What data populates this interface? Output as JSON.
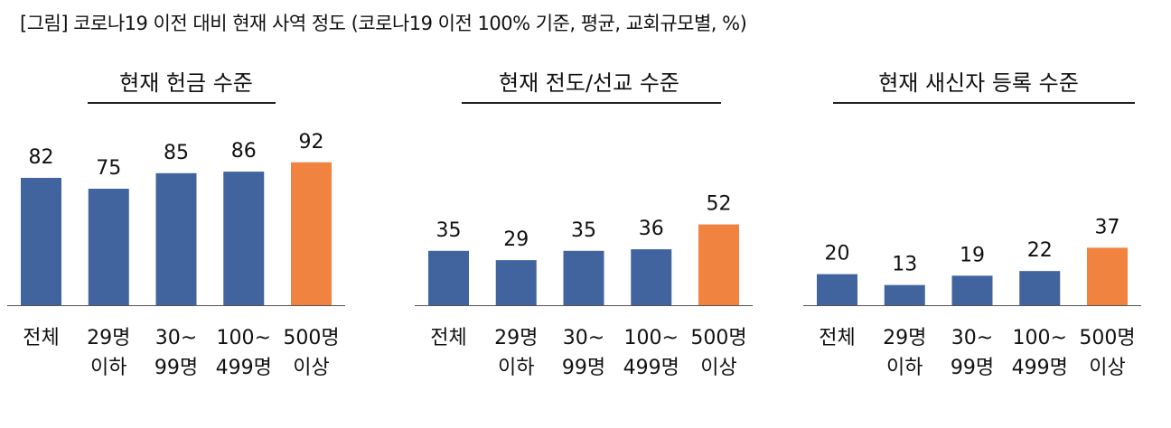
{
  "title": "[그림] 코로나19 이전 대비 현재 사역 정도 (코로나19 이전 100% 기준, 평균, 교회규모별, %)",
  "colors": {
    "base": "#41649F",
    "highlight": "#F0833F",
    "axis": "#555555"
  },
  "chart_data": [
    {
      "type": "bar",
      "title": "현재 헌금 수준",
      "categories": [
        "전체",
        "29명 이하",
        "30~ 99명",
        "100~ 499명",
        "500명 이상"
      ],
      "category_lines": [
        [
          "전체"
        ],
        [
          "29명",
          "이하"
        ],
        [
          "30~",
          "99명"
        ],
        [
          "100~",
          "499명"
        ],
        [
          "500명",
          "이상"
        ]
      ],
      "values": [
        82,
        75,
        85,
        86,
        92
      ],
      "highlight_index": 4,
      "grid": false,
      "legend": "none"
    },
    {
      "type": "bar",
      "title": "현재 전도/선교 수준",
      "categories": [
        "전체",
        "29명 이하",
        "30~ 99명",
        "100~ 499명",
        "500명 이상"
      ],
      "category_lines": [
        [
          "전체"
        ],
        [
          "29명",
          "이하"
        ],
        [
          "30~",
          "99명"
        ],
        [
          "100~",
          "499명"
        ],
        [
          "500명",
          "이상"
        ]
      ],
      "values": [
        35,
        29,
        35,
        36,
        52
      ],
      "highlight_index": 4,
      "grid": false,
      "legend": "none"
    },
    {
      "type": "bar",
      "title": "현재 새신자 등록 수준",
      "categories": [
        "전체",
        "29명 이하",
        "30~ 99명",
        "100~ 499명",
        "500명 이상"
      ],
      "category_lines": [
        [
          "전체"
        ],
        [
          "29명",
          "이하"
        ],
        [
          "30~",
          "99명"
        ],
        [
          "100~",
          "499명"
        ],
        [
          "500명",
          "이상"
        ]
      ],
      "values": [
        20,
        13,
        19,
        22,
        37
      ],
      "highlight_index": 4,
      "grid": false,
      "legend": "none"
    }
  ]
}
